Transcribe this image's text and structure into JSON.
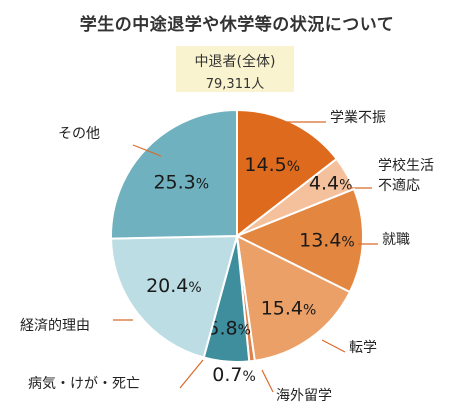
{
  "chart_data": {
    "type": "pie",
    "title": "学生の中途退学や休学等の状況について",
    "total_label": "中退者(全体)",
    "total_value": "79,311人",
    "start": "top",
    "direction": "clockwise",
    "slices": [
      {
        "label": "学業不振",
        "value": 14.5,
        "value_text": "14.5%",
        "color": "#de6a1e"
      },
      {
        "label": "学校生活\n不適応",
        "value": 4.4,
        "value_text": "4.4%",
        "color": "#f4c19c"
      },
      {
        "label": "就職",
        "value": 13.4,
        "value_text": "13.4%",
        "color": "#e28640"
      },
      {
        "label": "転学",
        "value": 15.4,
        "value_text": "15.4%",
        "color": "#eba067"
      },
      {
        "label": "海外留学",
        "value": 0.7,
        "value_text": "0.7%",
        "color": "#e0814a"
      },
      {
        "label": "病気・けが・死亡",
        "value": 5.8,
        "value_text": "5.8%",
        "color": "#3e8e9e"
      },
      {
        "label": "経済的理由",
        "value": 20.4,
        "value_text": "20.4%",
        "color": "#bcdde3"
      },
      {
        "label": "その他",
        "value": 25.3,
        "value_text": "25.3%",
        "color": "#6fb1bf"
      }
    ]
  }
}
